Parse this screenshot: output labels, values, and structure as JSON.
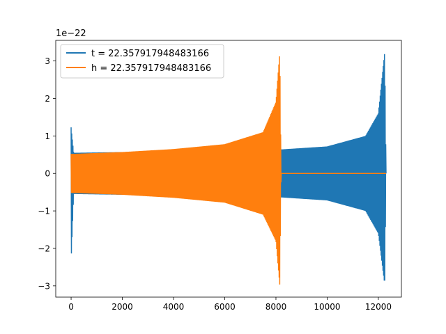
{
  "chart_data": {
    "type": "line",
    "title": "",
    "xlabel": "",
    "ylabel": "",
    "y_offset_label": "1e−22",
    "xlim": [
      -600,
      12900
    ],
    "ylim": [
      -3.3,
      3.55
    ],
    "x_ticks": [
      0,
      2000,
      4000,
      6000,
      8000,
      10000,
      12000
    ],
    "y_ticks": [
      -3,
      -2,
      -1,
      0,
      1,
      2,
      3
    ],
    "grid": false,
    "legend_position": "upper left",
    "series": [
      {
        "name": "t = 22.357917948483166",
        "color": "#1f77b4",
        "description_points": [
          {
            "x": 0,
            "y_min": -2.35,
            "y_max": 1.23
          },
          {
            "x": 100,
            "y_min": -0.55,
            "y_max": 0.55
          },
          {
            "x": 2000,
            "y_min": -0.57,
            "y_max": 0.57
          },
          {
            "x": 4000,
            "y_min": -0.59,
            "y_max": 0.59
          },
          {
            "x": 6000,
            "y_min": -0.61,
            "y_max": 0.61
          },
          {
            "x": 8200,
            "y_min": -0.64,
            "y_max": 0.64
          },
          {
            "x": 10000,
            "y_min": -0.72,
            "y_max": 0.72
          },
          {
            "x": 11500,
            "y_min": -1.0,
            "y_max": 1.0
          },
          {
            "x": 12000,
            "y_min": -1.6,
            "y_max": 1.6
          },
          {
            "x": 12250,
            "y_min": -2.98,
            "y_max": 3.25
          },
          {
            "x": 12300,
            "y_min": 0,
            "y_max": 0
          }
        ]
      },
      {
        "name": "h = 22.357917948483166",
        "color": "#ff7f0e",
        "description_points": [
          {
            "x": 0,
            "y_min": -0.52,
            "y_max": 0.52
          },
          {
            "x": 2000,
            "y_min": -0.57,
            "y_max": 0.57
          },
          {
            "x": 4000,
            "y_min": -0.65,
            "y_max": 0.65
          },
          {
            "x": 6000,
            "y_min": -0.78,
            "y_max": 0.78
          },
          {
            "x": 7500,
            "y_min": -1.1,
            "y_max": 1.1
          },
          {
            "x": 8000,
            "y_min": -1.8,
            "y_max": 1.9
          },
          {
            "x": 8150,
            "y_min": -2.98,
            "y_max": 3.25
          },
          {
            "x": 8200,
            "y_min": 0,
            "y_max": 0
          },
          {
            "x": 12300,
            "y_min": 0,
            "y_max": 0
          }
        ]
      }
    ]
  }
}
